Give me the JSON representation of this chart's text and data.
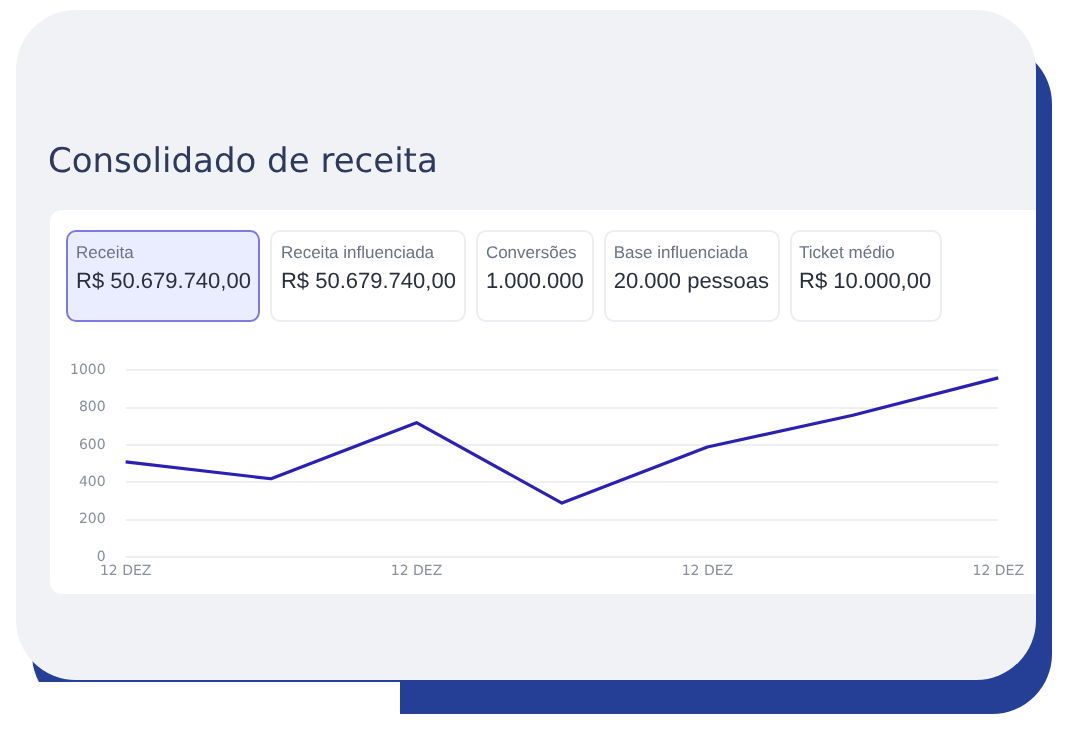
{
  "chart_data": [
    {
      "type": "other",
      "title": "Consolidado de receita",
      "annotations": [
        "Receita",
        "R$ 50.679.740,00",
        "Receita influenciada",
        "R$ 50.679.740,00",
        "Conversões",
        "1.000.000",
        "Base influenciada",
        "20.000 pessoas",
        "Ticket médio",
        "R$ 10.000,00"
      ]
    },
    {
      "type": "line",
      "categories": [
        "12 DEZ",
        null,
        "12 DEZ",
        null,
        "12 DEZ",
        null,
        "12 DEZ"
      ],
      "series": [
        {
          "color": "#2c1fb4",
          "values": [
            510,
            420,
            720,
            290,
            590,
            760,
            960
          ]
        }
      ],
      "ylim": [
        0,
        1000
      ],
      "yticks": [
        0,
        200,
        400,
        600,
        800,
        1000
      ],
      "grid": "y",
      "legend": false,
      "marker": "none",
      "line_style": "solid"
    }
  ]
}
